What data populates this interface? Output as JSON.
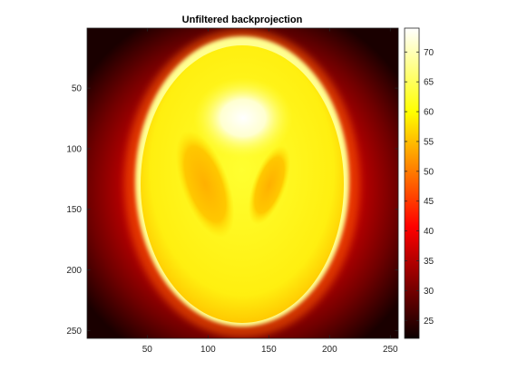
{
  "chart_data": {
    "type": "heatmap",
    "title": "Unfiltered backprojection",
    "xlabel": "",
    "ylabel": "",
    "x_range": [
      1,
      256
    ],
    "y_range": [
      1,
      256
    ],
    "y_direction": "reversed",
    "x_ticks": [
      50,
      100,
      150,
      200,
      250
    ],
    "y_ticks": [
      50,
      100,
      150,
      200,
      250
    ],
    "colormap": "hot",
    "color_limits": [
      22,
      74
    ],
    "colorbar": {
      "ticks": [
        25,
        30,
        35,
        40,
        45,
        50,
        55,
        60,
        65,
        70
      ],
      "location": "right"
    },
    "grid": false,
    "image_description": "Blurred Shepp-Logan phantom: bright yellow ellipse on dark red background, with a whitish hot spot near the top-center and two darker orange tilted ellipses in the middle.",
    "regions": [
      {
        "name": "background_corner",
        "value": 24
      },
      {
        "name": "background_near_head",
        "value": 40
      },
      {
        "name": "skull_rim",
        "value": 70
      },
      {
        "name": "brain_interior",
        "value": 62
      },
      {
        "name": "top_hot_spot",
        "value": 74
      },
      {
        "name": "left_inner_ellipse",
        "value": 52
      },
      {
        "name": "right_inner_ellipse",
        "value": 53
      },
      {
        "name": "lower_region",
        "value": 60
      }
    ]
  }
}
